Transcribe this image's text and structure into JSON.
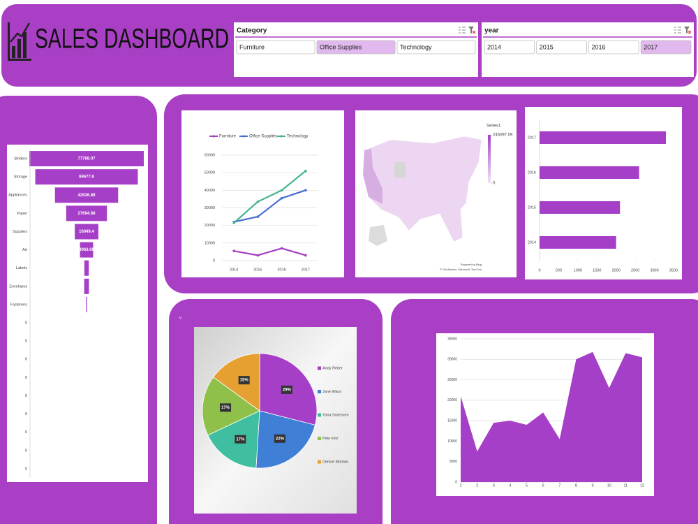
{
  "header": {
    "title": "SALES DASHBOARD"
  },
  "slicers": [
    {
      "title": "Category",
      "items": [
        {
          "label": "Furniture",
          "selected": false
        },
        {
          "label": "Office Supplies",
          "selected": true
        },
        {
          "label": "Technology",
          "selected": false
        }
      ]
    },
    {
      "title": "year",
      "items": [
        {
          "label": "2014",
          "selected": false
        },
        {
          "label": "2015",
          "selected": false
        },
        {
          "label": "2016",
          "selected": false
        },
        {
          "label": "2017",
          "selected": true
        }
      ]
    }
  ],
  "chart_data": [
    {
      "type": "funnel",
      "color": "#a53fc7",
      "categories": [
        "Binders",
        "Storage",
        "Appliances",
        "Paper",
        "Supplies",
        "Art",
        "Labels",
        "Envelopes",
        "Fasteners",
        "0",
        "0",
        "0",
        "0",
        "0",
        "0",
        "0",
        "0",
        "0"
      ],
      "values": [
        77788.07,
        69677.6,
        42936.89,
        27694.68,
        16049.4,
        8963.06,
        3000,
        3200,
        600,
        0,
        0,
        0,
        0,
        0,
        0,
        0,
        0,
        0
      ],
      "value_labels": [
        "77788.07",
        "69677.6",
        "42936.89",
        "27694.68",
        "16049.4",
        "8963.06",
        null,
        null,
        null,
        null,
        null,
        null,
        null,
        null,
        null,
        null,
        null,
        null
      ]
    },
    {
      "type": "line",
      "categories": [
        "2014",
        "2015",
        "2016",
        "2017"
      ],
      "series": [
        {
          "name": "Furniture",
          "color": "#a43fc6",
          "values": [
            5500,
            3000,
            7000,
            3000
          ]
        },
        {
          "name": "Office Supplies",
          "color": "#4a6fd2",
          "values": [
            22000,
            25000,
            35500,
            40000
          ]
        },
        {
          "name": "Technology",
          "color": "#43b38d",
          "values": [
            21500,
            33500,
            40000,
            51000
          ]
        }
      ],
      "ylim": [
        0,
        60000
      ],
      "yticks": [
        0,
        10000,
        20000,
        30000,
        40000,
        50000,
        60000
      ],
      "grid": true,
      "legend": "top"
    },
    {
      "type": "map",
      "colorbar": {
        "title": "Series1",
        "ticks": [
          0,
          246097.09
        ],
        "colors": [
          "#f3e3f7",
          "#a53fc7"
        ]
      },
      "attribution": [
        "Powered by Bing",
        "© GeoNames, Microsoft, TomTom"
      ]
    },
    {
      "type": "barh",
      "color": "#a53fc7",
      "categories": [
        "2014",
        "2015",
        "2016",
        "2017"
      ],
      "values": [
        2000,
        2100,
        2600,
        3300
      ],
      "xlim": [
        0,
        3500
      ],
      "xticks": [
        0,
        500,
        1000,
        1500,
        2000,
        2500,
        3000,
        3500
      ]
    },
    {
      "type": "pie",
      "annotation": "v",
      "categories": [
        "Andy Reiter",
        "Jane Waco",
        "Yana Sorensen",
        "Pete Kriz",
        "Denise Monton"
      ],
      "values": [
        29,
        22,
        17,
        17,
        15
      ],
      "value_labels": [
        "29%",
        "22%",
        "17%",
        "17%",
        "15%"
      ],
      "colors": [
        "#a53fc7",
        "#3f7fd6",
        "#3fbfa0",
        "#8fc14a",
        "#e6a032"
      ],
      "legend": "right"
    },
    {
      "type": "area",
      "color": "#a53fc7",
      "x": [
        1,
        2,
        3,
        4,
        5,
        6,
        7,
        8,
        9,
        10,
        11,
        12
      ],
      "values": [
        21000,
        7500,
        14500,
        15000,
        14000,
        17000,
        10500,
        30000,
        31800,
        23000,
        31500,
        30500
      ],
      "xlim": [
        1,
        12
      ],
      "xticks": [
        1,
        2,
        3,
        4,
        5,
        6,
        7,
        8,
        9,
        10,
        11,
        12
      ],
      "ylim": [
        0,
        35000
      ],
      "yticks": [
        0,
        5000,
        10000,
        15000,
        20000,
        25000,
        30000,
        35000
      ],
      "grid": true
    }
  ]
}
